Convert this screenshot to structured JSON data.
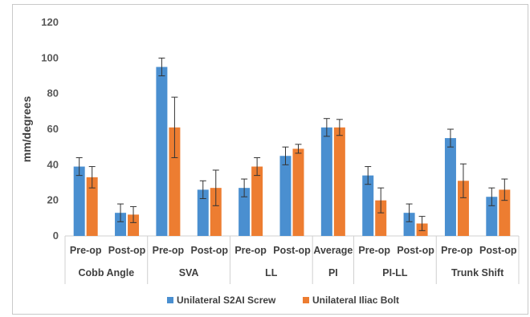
{
  "chart_data": {
    "type": "bar",
    "title": "",
    "xlabel": "",
    "ylabel": "mm/degrees",
    "ylim": [
      0,
      120
    ],
    "yticks": [
      0,
      20,
      40,
      60,
      80,
      100,
      120
    ],
    "grid": false,
    "legend_position": "bottom",
    "groups": [
      {
        "label": "Cobb Angle",
        "categories": [
          "Pre-op",
          "Post-op"
        ]
      },
      {
        "label": "SVA",
        "categories": [
          "Pre-op",
          "Post-op"
        ]
      },
      {
        "label": "LL",
        "categories": [
          "Pre-op",
          "Post-op"
        ]
      },
      {
        "label": "PI",
        "categories": [
          "Average"
        ]
      },
      {
        "label": "PI-LL",
        "categories": [
          "Pre-op",
          "Post-op"
        ]
      },
      {
        "label": "Trunk Shift",
        "categories": [
          "Pre-op",
          "Post-op"
        ]
      }
    ],
    "categories": [
      "Pre-op",
      "Post-op",
      "Pre-op",
      "Post-op",
      "Pre-op",
      "Post-op",
      "Average",
      "Pre-op",
      "Post-op",
      "Pre-op",
      "Post-op"
    ],
    "series": [
      {
        "name": "Unilateral S2AI Screw",
        "color": "#4a8fd0",
        "values": [
          39,
          13,
          95,
          26,
          27,
          45,
          61,
          34,
          13,
          55,
          22
        ],
        "error": [
          5,
          5,
          5,
          5,
          5,
          5,
          5,
          5,
          5,
          5,
          5
        ]
      },
      {
        "name": "Unilateral Iliac Bolt",
        "color": "#ed7d31",
        "values": [
          33,
          12,
          61,
          27,
          39,
          49,
          61,
          20,
          7,
          31,
          26
        ],
        "error": [
          6,
          4.5,
          17,
          10,
          5,
          2.5,
          4.5,
          7,
          4,
          9.5,
          6
        ]
      }
    ]
  }
}
